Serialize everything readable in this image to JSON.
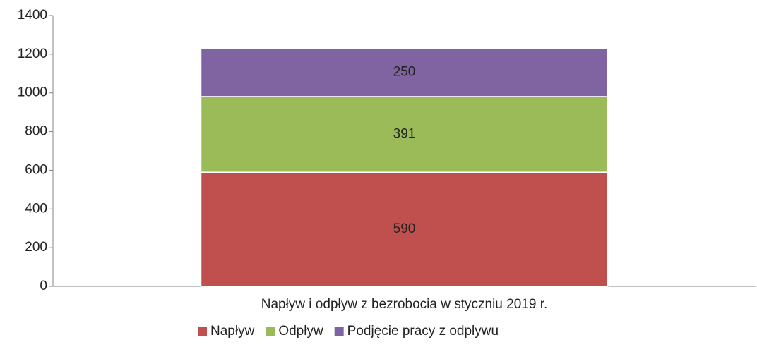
{
  "chart_data": {
    "type": "stacked_bar",
    "categories": [
      "Napływ i odpływ z bezrobocia w styczniu 2019 r."
    ],
    "series": [
      {
        "name": "Napływ",
        "color": "#c0504d",
        "values": [
          590
        ]
      },
      {
        "name": "Odpływ",
        "color": "#9bbb59",
        "values": [
          391
        ]
      },
      {
        "name": "Podjęcie pracy z odplywu",
        "color": "#8064a2",
        "values": [
          250
        ]
      }
    ],
    "ylim": [
      0,
      1400
    ],
    "yticks": [
      0,
      200,
      400,
      600,
      800,
      1000,
      1200,
      1400
    ]
  }
}
